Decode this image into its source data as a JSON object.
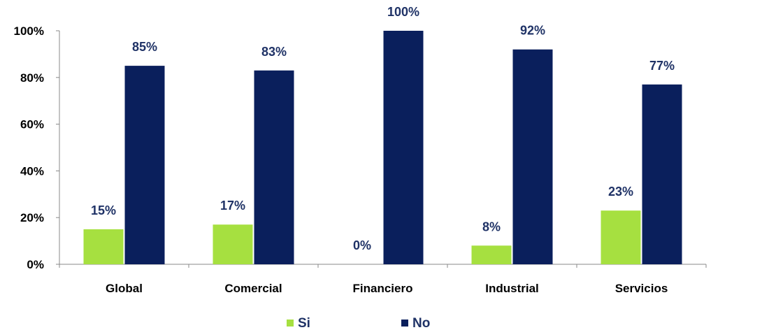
{
  "chart_data": {
    "type": "bar",
    "categories": [
      "Global",
      "Comercial",
      "Financiero",
      "Industrial",
      "Servicios"
    ],
    "series": [
      {
        "name": "Si",
        "values": [
          15,
          17,
          0,
          8,
          23
        ],
        "labels": [
          "15%",
          "17%",
          "0%",
          "8%",
          "23%"
        ],
        "color": "#a6e040"
      },
      {
        "name": "No",
        "values": [
          85,
          83,
          100,
          92,
          77
        ],
        "labels": [
          "85%",
          "83%",
          "100%",
          "92%",
          "77%"
        ],
        "color": "#0a1f5c"
      }
    ],
    "yticks": [
      "0%",
      "20%",
      "40%",
      "60%",
      "80%",
      "100%"
    ],
    "ylim": [
      0,
      100
    ],
    "grid": false,
    "legend_position": "bottom",
    "label_color": "#1f3266",
    "axis_color": "#888888"
  }
}
